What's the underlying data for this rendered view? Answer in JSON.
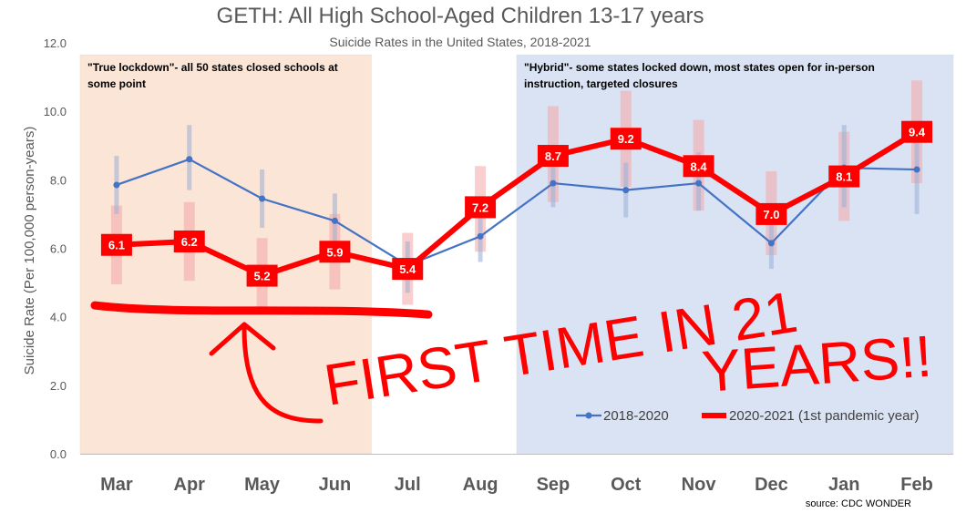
{
  "chart_data": {
    "type": "line",
    "title": "GETH: All High School-Aged Children 13-17 years",
    "subtitle": "Suicide Rates in the United States, 2018-2021",
    "ylabel": "Suicide Rate (Per 100,000 person-years)",
    "xlabel": "",
    "ylim": [
      0,
      12
    ],
    "yticks": [
      "0.0",
      "2.0",
      "4.0",
      "6.0",
      "8.0",
      "10.0",
      "12.0"
    ],
    "categories": [
      "Mar",
      "Apr",
      "May",
      "Jun",
      "Jul",
      "Aug",
      "Sep",
      "Oct",
      "Nov",
      "Dec",
      "Jan",
      "Feb"
    ],
    "series": [
      {
        "name": "2018-2020",
        "color": "#4472c4",
        "values": [
          7.85,
          8.6,
          7.45,
          6.8,
          5.5,
          6.35,
          7.9,
          7.7,
          7.9,
          6.15,
          8.35,
          8.3
        ],
        "err_low": [
          7.0,
          7.7,
          6.6,
          6.0,
          4.7,
          5.6,
          7.2,
          6.9,
          7.1,
          5.4,
          7.2,
          7.0
        ],
        "err_high": [
          8.7,
          9.6,
          8.3,
          7.6,
          6.2,
          7.1,
          8.6,
          8.5,
          8.8,
          6.9,
          9.6,
          9.5
        ]
      },
      {
        "name": "2020-2021 (1st pandemic year)",
        "color": "#ff0000",
        "values": [
          6.1,
          6.2,
          5.2,
          5.9,
          5.4,
          7.2,
          8.7,
          9.2,
          8.4,
          7.0,
          8.1,
          9.4
        ],
        "labels": [
          "6.1",
          "6.2",
          "5.2",
          "5.9",
          "5.4",
          "7.2",
          "8.7",
          "9.2",
          "8.4",
          "7.0",
          "8.1",
          "9.4"
        ],
        "err_low": [
          4.95,
          5.05,
          4.15,
          4.8,
          4.35,
          5.9,
          7.35,
          7.8,
          7.1,
          5.8,
          6.8,
          7.9
        ],
        "err_high": [
          7.25,
          7.35,
          6.3,
          7.0,
          6.45,
          8.4,
          10.15,
          10.6,
          9.75,
          8.25,
          9.4,
          10.9
        ]
      }
    ],
    "legend_position": "bottom-right",
    "grid": false,
    "regions": [
      {
        "label": "\"True lockdown\"- all 50 states closed schools at some point",
        "label_lines": [
          "\"True lockdown\"- all 50 states closed schools at",
          "some point"
        ],
        "from": "Mar",
        "to": "Jun",
        "color": "#fbe5d6"
      },
      {
        "label": "\"Hybrid\"- some states locked down, most states open for in-person instruction, targeted closures",
        "label_lines": [
          "\"Hybrid\"- some states locked down, most states open for in-person",
          "instruction, targeted closures"
        ],
        "from": "Sep",
        "to": "Feb",
        "color": "#dae3f3"
      }
    ],
    "handwritten": {
      "line1": "FIRST TIME IN 21",
      "line2": "YEARS!!",
      "baseline_value": 4.2,
      "color": "#ff0000"
    },
    "source": "source: CDC WONDER"
  }
}
